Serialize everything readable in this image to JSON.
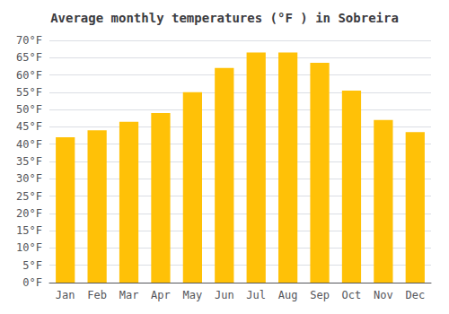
{
  "chart_data": {
    "type": "bar",
    "title": "Average monthly temperatures (°F ) in Sobreira",
    "categories": [
      "Jan",
      "Feb",
      "Mar",
      "Apr",
      "May",
      "Jun",
      "Jul",
      "Aug",
      "Sep",
      "Oct",
      "Nov",
      "Dec"
    ],
    "values": [
      42,
      44,
      46.5,
      49,
      55,
      62,
      66.5,
      66.5,
      63.5,
      55.5,
      47,
      43.5
    ],
    "color": "#FFC107",
    "ylim": [
      0,
      70
    ],
    "yticks": [
      {
        "value": 0,
        "label": "0°F"
      },
      {
        "value": 5,
        "label": "5°F"
      },
      {
        "value": 10,
        "label": "10°F"
      },
      {
        "value": 15,
        "label": "15°F"
      },
      {
        "value": 20,
        "label": "20°F"
      },
      {
        "value": 25,
        "label": "25°F"
      },
      {
        "value": 30,
        "label": "30°F"
      },
      {
        "value": 35,
        "label": "35°F"
      },
      {
        "value": 40,
        "label": "40°F"
      },
      {
        "value": 45,
        "label": "45°F"
      },
      {
        "value": 50,
        "label": "50°F"
      },
      {
        "value": 55,
        "label": "55°F"
      },
      {
        "value": 60,
        "label": "60°F"
      },
      {
        "value": 65,
        "label": "65°F"
      },
      {
        "value": 70,
        "label": "70°F"
      }
    ],
    "grid": true
  }
}
